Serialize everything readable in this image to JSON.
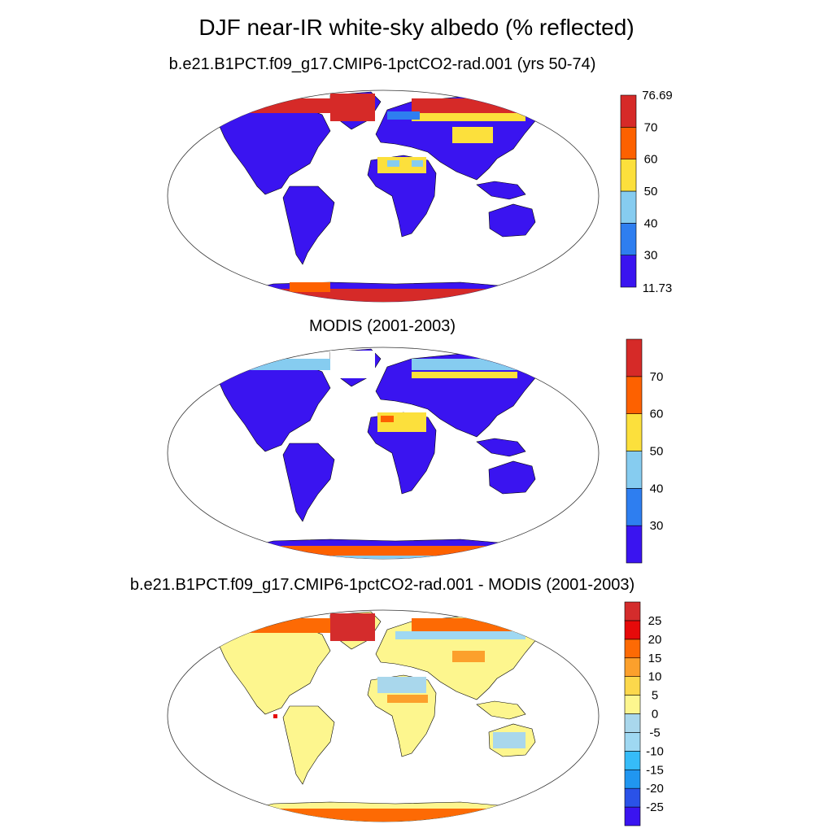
{
  "main_title": "DJF near-IR white-sky albedo (% reflected)",
  "colors": {
    "abs_scale": [
      "#3a14f0",
      "#2e7ef0",
      "#86ccf0",
      "#fce03c",
      "#fd6100",
      "#d62a28"
    ],
    "diff_scale": [
      "#3a14f0",
      "#2a52e8",
      "#2096f0",
      "#36bcf8",
      "#9fd8f2",
      "#a9d7ec",
      "#fdf68e",
      "#fcd84c",
      "#fca02c",
      "#fd6a04",
      "#e60a0a",
      "#d42c2c"
    ],
    "coastline": "#000000",
    "background": "#ffffff"
  },
  "chart_data": [
    {
      "type": "heatmap",
      "title": "b.e21.B1PCT.f09_g17.CMIP6-1pctCO2-rad.001 (yrs 50-74)",
      "projection": "global map (Robinson)",
      "colorbar": {
        "levels": [
          30,
          40,
          50,
          60,
          70
        ],
        "level_labels": [
          "30",
          "40",
          "50",
          "60",
          "70"
        ],
        "min_label": "11.73",
        "max_label": "76.69"
      }
    },
    {
      "type": "heatmap",
      "title": "MODIS (2001-2003)",
      "projection": "global map (Robinson)",
      "colorbar": {
        "levels": [
          30,
          40,
          50,
          60,
          70
        ],
        "level_labels": [
          "30",
          "40",
          "50",
          "60",
          "70"
        ],
        "min_label": "",
        "max_label": ""
      }
    },
    {
      "type": "heatmap",
      "title": "b.e21.B1PCT.f09_g17.CMIP6-1pctCO2-rad.001 - MODIS (2001-2003)",
      "projection": "global map (Robinson)",
      "colorbar": {
        "levels": [
          -25,
          -20,
          -15,
          -10,
          -5,
          0,
          5,
          10,
          15,
          20,
          25
        ],
        "level_labels": [
          "-25",
          "-20",
          "-15",
          "-10",
          "-5",
          "0",
          "5",
          "10",
          "15",
          "20",
          "25"
        ],
        "min_label": "",
        "max_label": ""
      }
    }
  ]
}
